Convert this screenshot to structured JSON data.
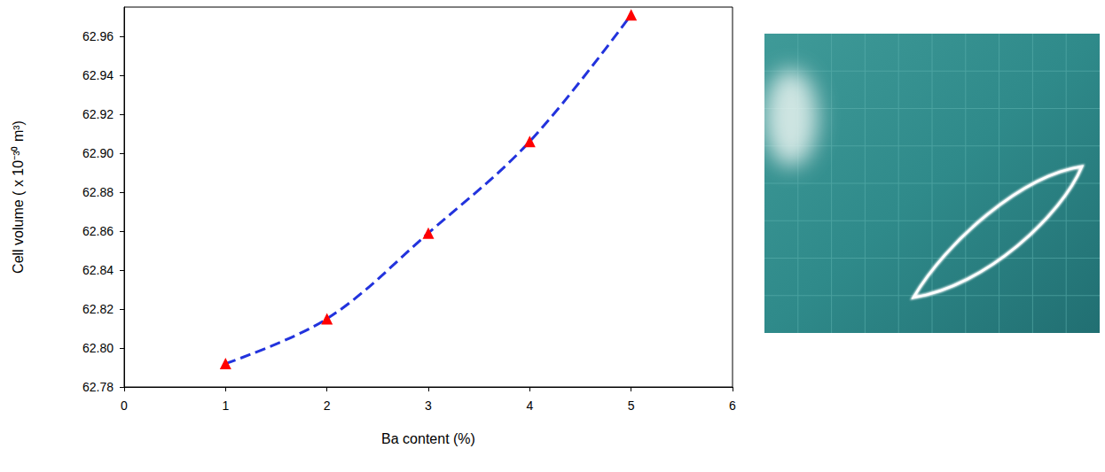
{
  "chart_data": {
    "type": "line",
    "x_label": "Ba content (%)",
    "y_label": "Cell volume ( x 10⁻³⁰ m³)",
    "x": [
      1,
      2,
      3,
      4,
      5
    ],
    "values": [
      62.792,
      62.815,
      62.859,
      62.906,
      62.971
    ],
    "color": "#2233dd",
    "colors": [
      "#ff0000",
      "#ff0000",
      "#ff0000",
      "#ff0000",
      "#ff0000"
    ],
    "marker": "triangle",
    "line_style": "dashed",
    "xlim": [
      0,
      6
    ],
    "xticks": [
      0,
      1,
      2,
      3,
      4,
      5,
      6
    ],
    "ylim": [
      62.78,
      62.975
    ],
    "yticks": [
      62.78,
      {
        "value": 62.8,
        "label": "62.80"
      },
      62.82,
      62.84,
      62.86,
      62.88,
      {
        "value": 62.9,
        "label": "62.90"
      },
      62.92,
      62.94,
      62.96
    ],
    "grid": false
  }
}
